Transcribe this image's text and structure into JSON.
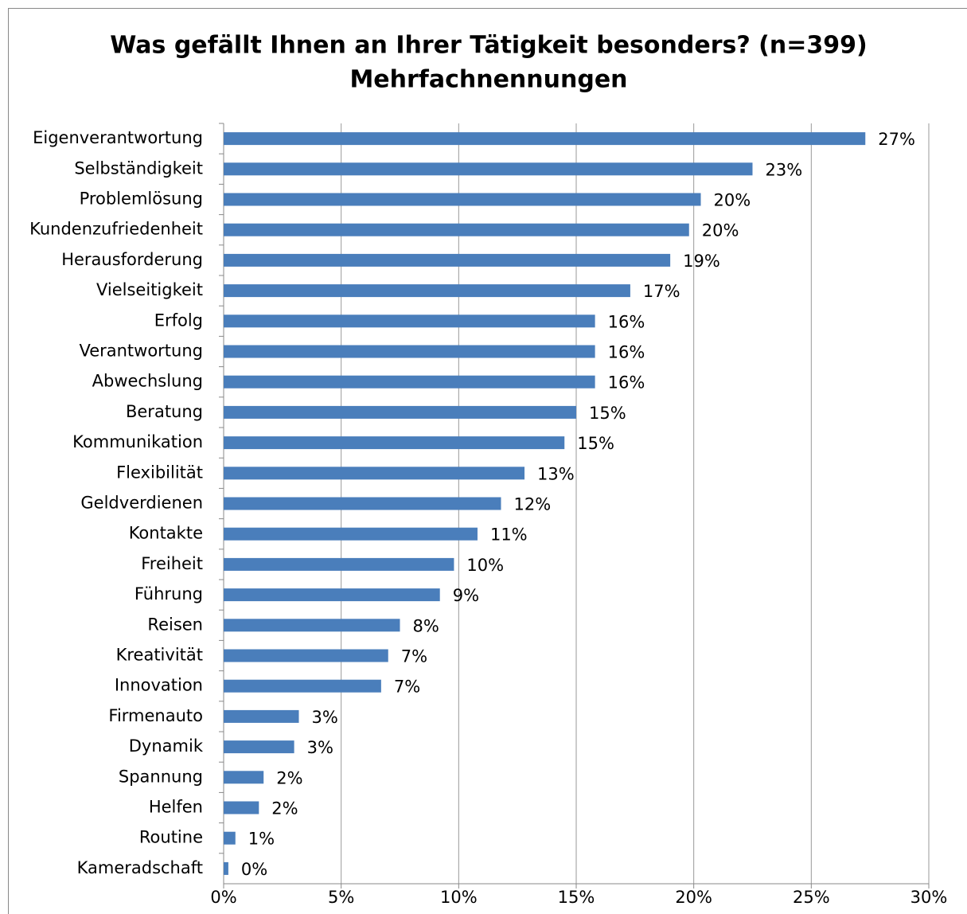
{
  "chart_data": {
    "type": "bar",
    "orientation": "horizontal",
    "title": "Was gefällt Ihnen an Ihrer Tätigkeit besonders? (n=399)",
    "subtitle": "Mehrfachnennungen",
    "categories": [
      "Eigenverantwortung",
      "Selbständigkeit",
      "Problemlösung",
      "Kundenzufriedenheit",
      "Herausforderung",
      "Vielseitigkeit",
      "Erfolg",
      "Verantwortung",
      "Abwechslung",
      "Beratung",
      "Kommunikation",
      "Flexibilität",
      "Geldverdienen",
      "Kontakte",
      "Freiheit",
      "Führung",
      "Reisen",
      "Kreativität",
      "Innovation",
      "Firmenauto",
      "Dynamik",
      "Spannung",
      "Helfen",
      "Routine",
      "Kameradschaft"
    ],
    "values": [
      27.3,
      22.5,
      20.3,
      19.8,
      19.0,
      17.3,
      15.8,
      15.8,
      15.8,
      15.0,
      14.5,
      12.8,
      11.8,
      10.8,
      9.8,
      9.2,
      7.5,
      7.0,
      6.7,
      3.2,
      3.0,
      1.7,
      1.5,
      0.5,
      0.2
    ],
    "value_labels": [
      "27%",
      "23%",
      "20%",
      "20%",
      "19%",
      "17%",
      "16%",
      "16%",
      "16%",
      "15%",
      "15%",
      "13%",
      "12%",
      "11%",
      "10%",
      "9%",
      "8%",
      "7%",
      "7%",
      "3%",
      "3%",
      "2%",
      "2%",
      "1%",
      "0%"
    ],
    "color": "#4a7ebb",
    "xlim": [
      0,
      30
    ],
    "xticks": [
      {
        "value": 0,
        "label": "0%"
      },
      {
        "value": 5,
        "label": "5%"
      },
      {
        "value": 10,
        "label": "10%"
      },
      {
        "value": 15,
        "label": "15%"
      },
      {
        "value": 20,
        "label": "20%"
      },
      {
        "value": 25,
        "label": "25%"
      },
      {
        "value": 30,
        "label": "30%"
      }
    ],
    "grid": true
  }
}
